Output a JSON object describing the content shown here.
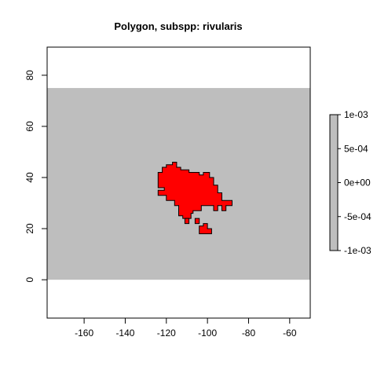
{
  "chart_data": {
    "type": "heatmap",
    "title": "Polygon, subspp: rivularis",
    "xlabel": "",
    "ylabel": "",
    "xlim": [
      -178,
      -50
    ],
    "ylim": [
      -15,
      91
    ],
    "x_ticks": [
      -160,
      -140,
      -120,
      -100,
      -80,
      -60
    ],
    "y_ticks": [
      0,
      20,
      40,
      60,
      80
    ],
    "x_tick_labels": [
      "-160",
      "-140",
      "-120",
      "-100",
      "-80",
      "-60"
    ],
    "y_tick_labels": [
      "0",
      "20",
      "40",
      "60",
      "80"
    ],
    "raster_extent": {
      "xmin": -178,
      "xmax": -50,
      "ymin": 0,
      "ymax": 75
    },
    "background_value": 0,
    "background_color": "#bebebe",
    "polygon_color": "#ff0000",
    "polygon_name": "rivularis",
    "polygon": [
      [
        -124,
        40
      ],
      [
        -124,
        42
      ],
      [
        -122,
        42
      ],
      [
        -122,
        44
      ],
      [
        -120,
        44
      ],
      [
        -120,
        45
      ],
      [
        -117,
        45
      ],
      [
        -117,
        46
      ],
      [
        -115,
        46
      ],
      [
        -115,
        44
      ],
      [
        -113,
        44
      ],
      [
        -113,
        43
      ],
      [
        -109,
        43
      ],
      [
        -109,
        42
      ],
      [
        -104,
        42
      ],
      [
        -104,
        41
      ],
      [
        -102,
        41
      ],
      [
        -102,
        42
      ],
      [
        -99,
        42
      ],
      [
        -99,
        40
      ],
      [
        -97,
        40
      ],
      [
        -97,
        37
      ],
      [
        -95,
        37
      ],
      [
        -95,
        34
      ],
      [
        -93,
        34
      ],
      [
        -93,
        31
      ],
      [
        -88,
        31
      ],
      [
        -88,
        29
      ],
      [
        -91,
        29
      ],
      [
        -91,
        27
      ],
      [
        -93,
        27
      ],
      [
        -93,
        29
      ],
      [
        -95,
        29
      ],
      [
        -95,
        27
      ],
      [
        -97,
        27
      ],
      [
        -97,
        29
      ],
      [
        -103,
        29
      ],
      [
        -103,
        27
      ],
      [
        -107,
        27
      ],
      [
        -107,
        26
      ],
      [
        -108,
        26
      ],
      [
        -108,
        24
      ],
      [
        -112,
        24
      ],
      [
        -112,
        25
      ],
      [
        -114,
        25
      ],
      [
        -114,
        29
      ],
      [
        -116,
        29
      ],
      [
        -116,
        31
      ],
      [
        -120,
        31
      ],
      [
        -120,
        33
      ],
      [
        -124,
        33
      ],
      [
        -124,
        35
      ],
      [
        -121,
        35
      ],
      [
        -121,
        36
      ],
      [
        -124,
        36
      ]
    ],
    "islands": [
      [
        [
          -111,
          24
        ],
        [
          -111,
          22
        ],
        [
          -109,
          22
        ],
        [
          -109,
          24
        ]
      ],
      [
        [
          -106,
          24
        ],
        [
          -106,
          22
        ],
        [
          -104,
          22
        ],
        [
          -104,
          24
        ]
      ],
      [
        [
          -104,
          21
        ],
        [
          -104,
          18
        ],
        [
          -98,
          18
        ],
        [
          -98,
          20
        ],
        [
          -100,
          20
        ],
        [
          -100,
          22
        ],
        [
          -102,
          22
        ],
        [
          -102,
          21
        ]
      ]
    ],
    "colorbar": {
      "range": [
        -0.001,
        0.001
      ],
      "ticks": [
        -0.001,
        -0.0005,
        0,
        0.0005,
        0.001
      ],
      "tick_labels": [
        "-1e-03",
        "-5e-04",
        "0e+00",
        "5e-04",
        "1e-03"
      ],
      "color": "#bebebe"
    },
    "legend_placement": "right",
    "grid": false
  }
}
